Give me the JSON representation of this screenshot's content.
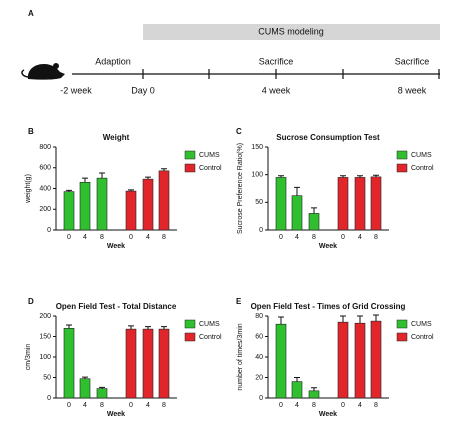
{
  "timeline": {
    "panel": "A",
    "banner": "CUMS modeling",
    "phases": [
      "Adaption",
      "Sacrifice",
      "Sacrifice"
    ],
    "times": [
      "-2 week",
      "Day 0",
      "4 week",
      "8 week"
    ]
  },
  "chart_data": [
    {
      "type": "bar",
      "panel": "B",
      "title": "Weight",
      "x_label": "Week",
      "y_label": "weight(g)",
      "categories": [
        "0",
        "4",
        "8"
      ],
      "series": [
        {
          "name": "CUMS",
          "color": "#2fbf2f",
          "values": [
            370,
            460,
            500
          ],
          "errors": [
            12,
            40,
            50
          ]
        },
        {
          "name": "Control",
          "color": "#e0262a",
          "values": [
            375,
            490,
            570
          ],
          "errors": [
            12,
            20,
            20
          ]
        }
      ],
      "ylim": [
        0,
        800
      ],
      "yticks": [
        0,
        200,
        400,
        600,
        800
      ]
    },
    {
      "type": "bar",
      "panel": "C",
      "title": "Sucrose Consumption Test",
      "x_label": "Week",
      "y_label": "Sucrose Preference Ratio(%)",
      "categories": [
        "0",
        "4",
        "8"
      ],
      "series": [
        {
          "name": "CUMS",
          "color": "#2fbf2f",
          "values": [
            95,
            62,
            30
          ],
          "errors": [
            3,
            15,
            10
          ]
        },
        {
          "name": "Control",
          "color": "#e0262a",
          "values": [
            95,
            95,
            96
          ],
          "errors": [
            3,
            3,
            3
          ]
        }
      ],
      "ylim": [
        0,
        150
      ],
      "yticks": [
        0,
        50,
        100,
        150
      ]
    },
    {
      "type": "bar",
      "panel": "D",
      "title": "Open Field Test -  Total Distance",
      "x_label": "Week",
      "y_label": "cm/3min",
      "categories": [
        "0",
        "4",
        "8"
      ],
      "series": [
        {
          "name": "CUMS",
          "color": "#2fbf2f",
          "values": [
            170,
            47,
            23
          ],
          "errors": [
            8,
            4,
            3
          ]
        },
        {
          "name": "Control",
          "color": "#e0262a",
          "values": [
            168,
            168,
            168
          ],
          "errors": [
            8,
            6,
            6
          ]
        }
      ],
      "ylim": [
        0,
        200
      ],
      "yticks": [
        0,
        50,
        100,
        150,
        200
      ]
    },
    {
      "type": "bar",
      "panel": "E",
      "title": "Open Field Test - Times of Grid Crossing",
      "x_label": "Week",
      "y_label": "number of times/3min",
      "categories": [
        "0",
        "4",
        "8"
      ],
      "series": [
        {
          "name": "CUMS",
          "color": "#2fbf2f",
          "values": [
            72,
            16,
            7
          ],
          "errors": [
            7,
            4,
            3
          ]
        },
        {
          "name": "Control",
          "color": "#e0262a",
          "values": [
            74,
            73,
            75
          ],
          "errors": [
            6,
            7,
            6
          ]
        }
      ],
      "ylim": [
        0,
        80
      ],
      "yticks": [
        0,
        20,
        40,
        60,
        80
      ]
    }
  ]
}
